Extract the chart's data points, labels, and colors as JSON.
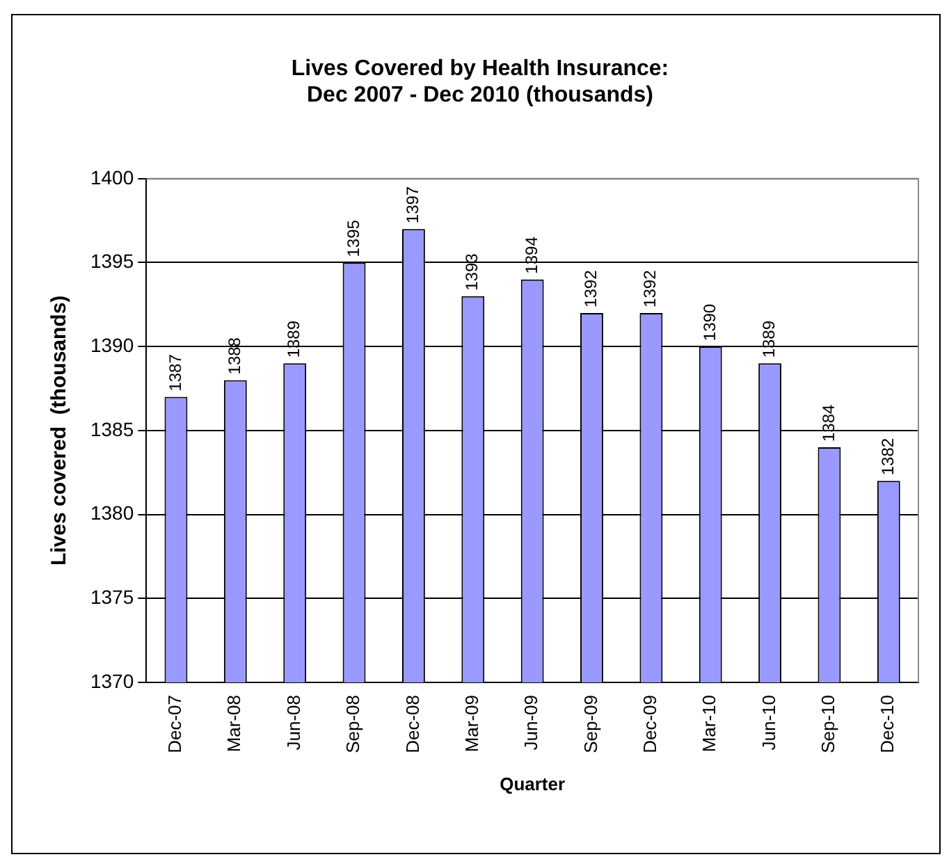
{
  "chart_data": {
    "type": "bar",
    "title": "Lives Covered by Health Insurance:\nDec 2007 - Dec 2010 (thousands)",
    "xlabel": "Quarter",
    "ylabel": "Lives covered  (thousands)",
    "categories": [
      "Dec-07",
      "Mar-08",
      "Jun-08",
      "Sep-08",
      "Dec-08",
      "Mar-09",
      "Jun-09",
      "Sep-09",
      "Dec-09",
      "Mar-10",
      "Jun-10",
      "Sep-10",
      "Dec-10"
    ],
    "values": [
      1387,
      1388,
      1389,
      1395,
      1397,
      1393,
      1394,
      1392,
      1392,
      1390,
      1389,
      1384,
      1382
    ],
    "color": "#9999ff",
    "ylim": [
      1370,
      1400
    ],
    "yticks": [
      1370,
      1375,
      1380,
      1385,
      1390,
      1395,
      1400
    ],
    "grid": "y",
    "data_labels": true
  }
}
